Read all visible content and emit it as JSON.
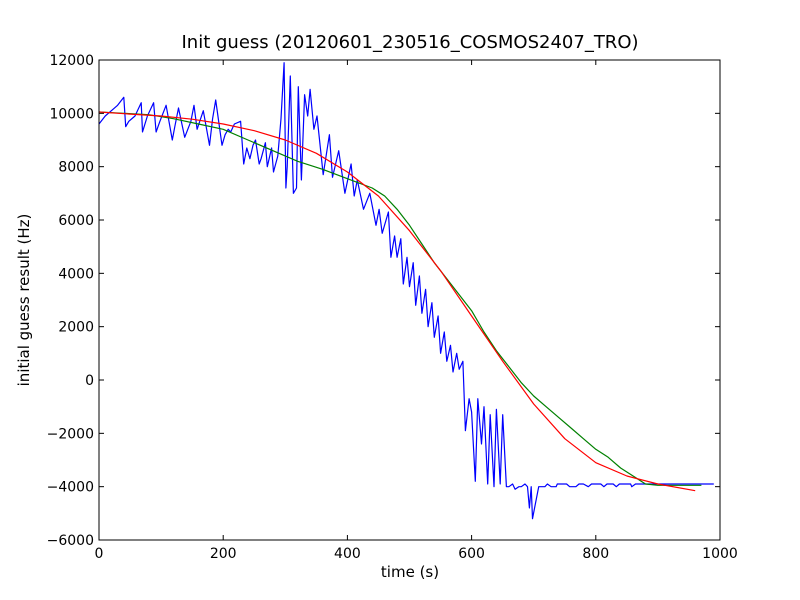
{
  "chart_data": {
    "type": "line",
    "title": "Init guess (20120601_230516_COSMOS2407_TRO)",
    "xlabel": "time (s)",
    "ylabel": "initial guess result (Hz)",
    "xlim": [
      0,
      1000
    ],
    "ylim": [
      -6000,
      12000
    ],
    "xticks": [
      0,
      200,
      400,
      600,
      800,
      1000
    ],
    "yticks": [
      -6000,
      -4000,
      -2000,
      0,
      2000,
      4000,
      6000,
      8000,
      10000,
      12000
    ],
    "grid": false,
    "series": [
      {
        "color": "#0000ff",
        "x": [
          0,
          10,
          20,
          30,
          40,
          43,
          48,
          58,
          68,
          70,
          78,
          88,
          92,
          98,
          108,
          118,
          122,
          128,
          138,
          148,
          153,
          158,
          168,
          178,
          183,
          188,
          198,
          203,
          208,
          212,
          218,
          228,
          233,
          238,
          243,
          248,
          252,
          258,
          261,
          268,
          271,
          278,
          281,
          288,
          293,
          298,
          301,
          303,
          308,
          313,
          318,
          321,
          326,
          331,
          336,
          340,
          346,
          351,
          361,
          371,
          376,
          386,
          396,
          406,
          411,
          416,
          426,
          436,
          446,
          451,
          456,
          466,
          470,
          476,
          480,
          486,
          490,
          496,
          500,
          506,
          510,
          516,
          520,
          526,
          530,
          536,
          540,
          546,
          550,
          556,
          560,
          566,
          570,
          576,
          580,
          586,
          590,
          596,
          600,
          606,
          610,
          616,
          620,
          626,
          630,
          636,
          640,
          646,
          650,
          656,
          660,
          666,
          670,
          676,
          680,
          686,
          690,
          693,
          696,
          698,
          708,
          713,
          718,
          722,
          728,
          733,
          736,
          738,
          748,
          753,
          758,
          760,
          768,
          773,
          778,
          780,
          788,
          793,
          798,
          800,
          808,
          813,
          818,
          820,
          828,
          833,
          838,
          842,
          848,
          853,
          856,
          858,
          864,
          870,
          876,
          878,
          884,
          890,
          900,
          930,
          960,
          990
        ],
        "y": [
          9600,
          9900,
          10100,
          10300,
          10600,
          9500,
          9700,
          9900,
          10400,
          9300,
          9900,
          10400,
          9300,
          9700,
          10300,
          9000,
          9500,
          10200,
          9100,
          9700,
          10300,
          9400,
          10100,
          8800,
          9800,
          10500,
          8800,
          9200,
          9400,
          9300,
          9600,
          9700,
          8100,
          8700,
          8300,
          8800,
          9000,
          8100,
          8300,
          8900,
          8000,
          8700,
          7800,
          8400,
          9800,
          11900,
          7200,
          8000,
          11400,
          7000,
          7200,
          11000,
          7500,
          10700,
          9900,
          10900,
          9400,
          9900,
          7700,
          9200,
          7600,
          8600,
          7000,
          8100,
          6900,
          7500,
          6400,
          7000,
          5800,
          6400,
          5500,
          6300,
          4600,
          5400,
          4600,
          5300,
          3600,
          4600,
          3500,
          4400,
          2800,
          3900,
          2500,
          3400,
          2000,
          2900,
          1600,
          2400,
          1000,
          1800,
          700,
          1300,
          300,
          1000,
          400,
          700,
          -1900,
          -700,
          -1200,
          -3800,
          -700,
          -2400,
          -1000,
          -3900,
          -1300,
          -4000,
          -1100,
          -3900,
          -1300,
          -4000,
          -4000,
          -3900,
          -4100,
          -4000,
          -4000,
          -3900,
          -4000,
          -4800,
          -4000,
          -5200,
          -4000,
          -4000,
          -4000,
          -3900,
          -4000,
          -4000,
          -4000,
          -3900,
          -3900,
          -3900,
          -4000,
          -4000,
          -4000,
          -3900,
          -3900,
          -3900,
          -4000,
          -3900,
          -3900,
          -3900,
          -3900,
          -4000,
          -3900,
          -3900,
          -3900,
          -4000,
          -3900,
          -3900,
          -3900,
          -3900,
          -3900,
          -4000,
          -3900,
          -3900,
          -3900,
          -3900,
          -3900,
          -3900,
          -3900,
          -3900,
          -3900,
          -3900
        ]
      },
      {
        "color": "#008000",
        "x": [
          0,
          40,
          80,
          120,
          160,
          200,
          240,
          280,
          320,
          360,
          400,
          440,
          460,
          480,
          500,
          520,
          540,
          560,
          580,
          600,
          620,
          640,
          660,
          680,
          700,
          720,
          740,
          760,
          780,
          800,
          820,
          840,
          860,
          880,
          900,
          940,
          970
        ],
        "y": [
          10050,
          10000,
          9950,
          9800,
          9600,
          9400,
          9000,
          8600,
          8200,
          7900,
          7550,
          7200,
          6900,
          6400,
          5800,
          5100,
          4400,
          3800,
          3200,
          2600,
          1800,
          1100,
          500,
          -100,
          -600,
          -1000,
          -1400,
          -1800,
          -2200,
          -2600,
          -2900,
          -3300,
          -3600,
          -3900,
          -3950,
          -3950,
          -3950
        ]
      },
      {
        "color": "#ff0000",
        "x": [
          0,
          50,
          100,
          150,
          200,
          250,
          300,
          350,
          400,
          450,
          500,
          550,
          600,
          650,
          700,
          750,
          800,
          850,
          900,
          960
        ],
        "y": [
          10050,
          9970,
          9900,
          9780,
          9600,
          9350,
          9000,
          8500,
          7800,
          6900,
          5600,
          4100,
          2400,
          700,
          -900,
          -2200,
          -3100,
          -3600,
          -3900,
          -4150
        ]
      }
    ]
  }
}
